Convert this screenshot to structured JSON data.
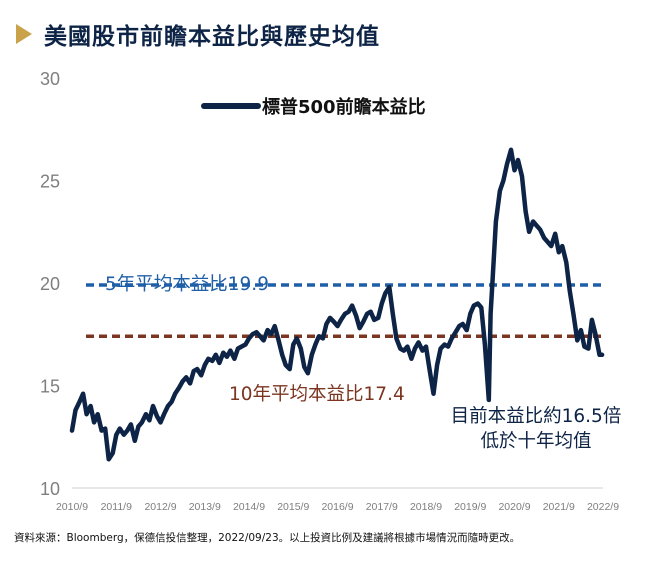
{
  "title": "美國股市前瞻本益比與歷史均值",
  "colors": {
    "title_marker": "#c9a24a",
    "title_text": "#0d2446",
    "series": "#0d2446",
    "avg5": "#1f5fa8",
    "avg10": "#7b3520",
    "grid": "#e0e0e0",
    "axis_text": "#7f7f7f"
  },
  "chart_data": {
    "type": "line",
    "legend_position": "top-center",
    "grid": false,
    "ylim": [
      10,
      30
    ],
    "yticks": [
      10,
      15,
      20,
      25,
      30
    ],
    "xlim": [
      2010.75,
      2022.75
    ],
    "xtick_labels": [
      "2010/9",
      "2011/9",
      "2012/9",
      "2013/9",
      "2014/9",
      "2015/9",
      "2016/9",
      "2017/9",
      "2018/9",
      "2019/9",
      "2020/9",
      "2021/9",
      "2022/9"
    ],
    "xtick_values": [
      2010.75,
      2011.75,
      2012.75,
      2013.75,
      2014.75,
      2015.75,
      2016.75,
      2017.75,
      2018.75,
      2019.75,
      2020.75,
      2021.75,
      2022.75
    ],
    "series": [
      {
        "name": "標普500前瞻本益比",
        "x": [
          2010.75,
          2010.83,
          2010.92,
          2011.0,
          2011.08,
          2011.17,
          2011.25,
          2011.33,
          2011.42,
          2011.5,
          2011.58,
          2011.67,
          2011.75,
          2011.83,
          2011.92,
          2012.0,
          2012.08,
          2012.17,
          2012.25,
          2012.33,
          2012.42,
          2012.5,
          2012.58,
          2012.67,
          2012.75,
          2012.83,
          2012.92,
          2013.0,
          2013.08,
          2013.17,
          2013.25,
          2013.33,
          2013.42,
          2013.5,
          2013.58,
          2013.67,
          2013.75,
          2013.83,
          2013.92,
          2014.0,
          2014.08,
          2014.17,
          2014.25,
          2014.33,
          2014.42,
          2014.5,
          2014.58,
          2014.67,
          2014.75,
          2014.83,
          2014.92,
          2015.0,
          2015.08,
          2015.17,
          2015.25,
          2015.33,
          2015.42,
          2015.5,
          2015.58,
          2015.67,
          2015.75,
          2015.83,
          2015.92,
          2016.0,
          2016.08,
          2016.17,
          2016.25,
          2016.33,
          2016.42,
          2016.5,
          2016.58,
          2016.67,
          2016.75,
          2016.83,
          2016.92,
          2017.0,
          2017.08,
          2017.17,
          2017.25,
          2017.33,
          2017.42,
          2017.5,
          2017.58,
          2017.67,
          2017.75,
          2017.83,
          2017.92,
          2018.0,
          2018.08,
          2018.17,
          2018.25,
          2018.33,
          2018.42,
          2018.5,
          2018.58,
          2018.67,
          2018.75,
          2018.83,
          2018.92,
          2019.0,
          2019.08,
          2019.17,
          2019.25,
          2019.33,
          2019.42,
          2019.5,
          2019.58,
          2019.67,
          2019.75,
          2019.83,
          2019.92,
          2020.0,
          2020.08,
          2020.17,
          2020.21,
          2020.25,
          2020.33,
          2020.42,
          2020.5,
          2020.58,
          2020.67,
          2020.75,
          2020.83,
          2020.92,
          2021.0,
          2021.08,
          2021.17,
          2021.25,
          2021.33,
          2021.42,
          2021.5,
          2021.58,
          2021.67,
          2021.75,
          2021.83,
          2021.92,
          2022.0,
          2022.08,
          2022.17,
          2022.25,
          2022.33,
          2022.42,
          2022.5,
          2022.58,
          2022.67,
          2022.73
        ],
        "values": [
          12.8,
          13.8,
          14.2,
          14.6,
          13.6,
          14.0,
          13.2,
          13.6,
          12.8,
          12.9,
          11.4,
          11.7,
          12.6,
          12.9,
          12.6,
          12.8,
          13.1,
          12.3,
          13.0,
          13.2,
          13.6,
          13.3,
          14.0,
          13.5,
          13.2,
          13.6,
          14.0,
          14.2,
          14.6,
          14.9,
          15.2,
          15.4,
          15.1,
          15.7,
          15.8,
          15.5,
          16.0,
          16.3,
          16.2,
          16.5,
          16.1,
          16.6,
          16.4,
          16.7,
          16.3,
          16.8,
          16.9,
          17.0,
          17.3,
          17.5,
          17.6,
          17.4,
          17.2,
          17.7,
          17.5,
          17.9,
          17.2,
          16.5,
          16.0,
          15.8,
          17.0,
          17.3,
          16.8,
          15.9,
          15.6,
          16.5,
          17.0,
          17.4,
          17.3,
          18.0,
          18.3,
          18.1,
          17.9,
          18.2,
          18.5,
          18.6,
          18.9,
          18.4,
          17.8,
          18.1,
          18.5,
          18.6,
          18.2,
          18.3,
          19.0,
          19.5,
          19.8,
          18.5,
          17.3,
          16.8,
          16.7,
          16.9,
          16.3,
          16.8,
          17.1,
          16.7,
          16.9,
          15.8,
          14.6,
          16.0,
          16.8,
          17.0,
          16.9,
          17.3,
          17.6,
          17.9,
          18.0,
          17.7,
          18.5,
          18.9,
          19.0,
          18.8,
          17.0,
          14.3,
          18.5,
          20.0,
          23.0,
          24.5,
          25.0,
          25.8,
          26.5,
          25.5,
          26.0,
          25.2,
          23.5,
          22.5,
          23.0,
          22.8,
          22.6,
          22.2,
          22.0,
          21.8,
          22.4,
          21.5,
          21.8,
          21.0,
          19.6,
          18.5,
          17.2,
          17.7,
          16.9,
          16.8,
          18.2,
          17.5,
          16.5,
          16.5
        ]
      }
    ],
    "reference_lines": [
      {
        "name": "5年平均本益比",
        "value": 19.9,
        "label": "5年平均本益比19.9"
      },
      {
        "name": "10年平均本益比",
        "value": 17.4,
        "label": "10年平均本益比17.4"
      }
    ],
    "annotations": [
      "目前本益比約16.5倍",
      "低於十年均值"
    ]
  },
  "source_text": "資料來源：Bloomberg，保德信投信整理，2022/09/23。以上投資比例及建議將根據市場情況而隨時更改。"
}
